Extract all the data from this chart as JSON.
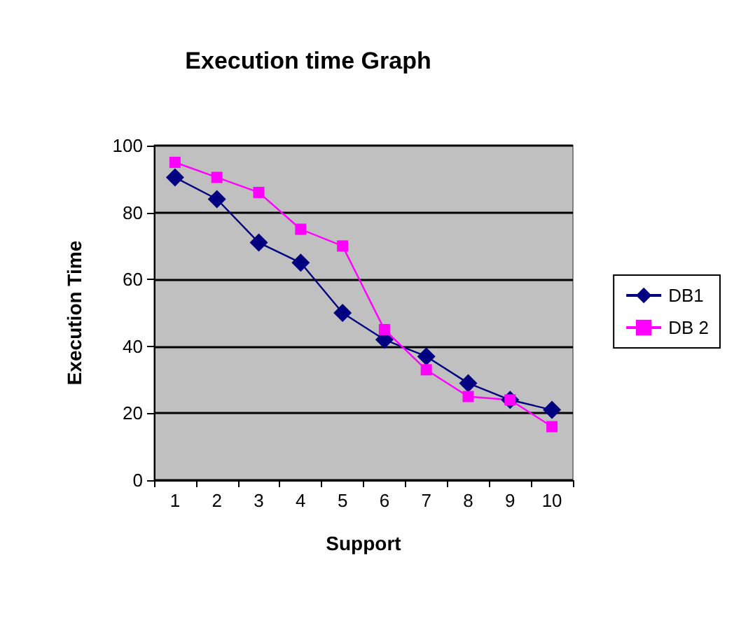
{
  "chart_data": {
    "type": "line",
    "title": "Execution time Graph",
    "xlabel": "Support",
    "ylabel": "Execution Time",
    "categories": [
      "1",
      "2",
      "3",
      "4",
      "5",
      "6",
      "7",
      "8",
      "9",
      "10"
    ],
    "series": [
      {
        "name": "DB1",
        "color": "#000080",
        "marker": "diamond",
        "values": [
          90.5,
          84,
          71,
          65,
          50,
          42,
          37,
          29,
          24,
          21
        ]
      },
      {
        "name": "DB 2",
        "color": "#ff00ff",
        "marker": "square",
        "values": [
          95,
          90.5,
          86,
          75,
          70,
          45,
          33,
          25,
          24,
          16
        ]
      }
    ],
    "ylim": [
      0,
      100
    ],
    "yticks": [
      0,
      20,
      40,
      60,
      80,
      100
    ],
    "grid": "y",
    "legend": "right",
    "line_style": "solid"
  }
}
